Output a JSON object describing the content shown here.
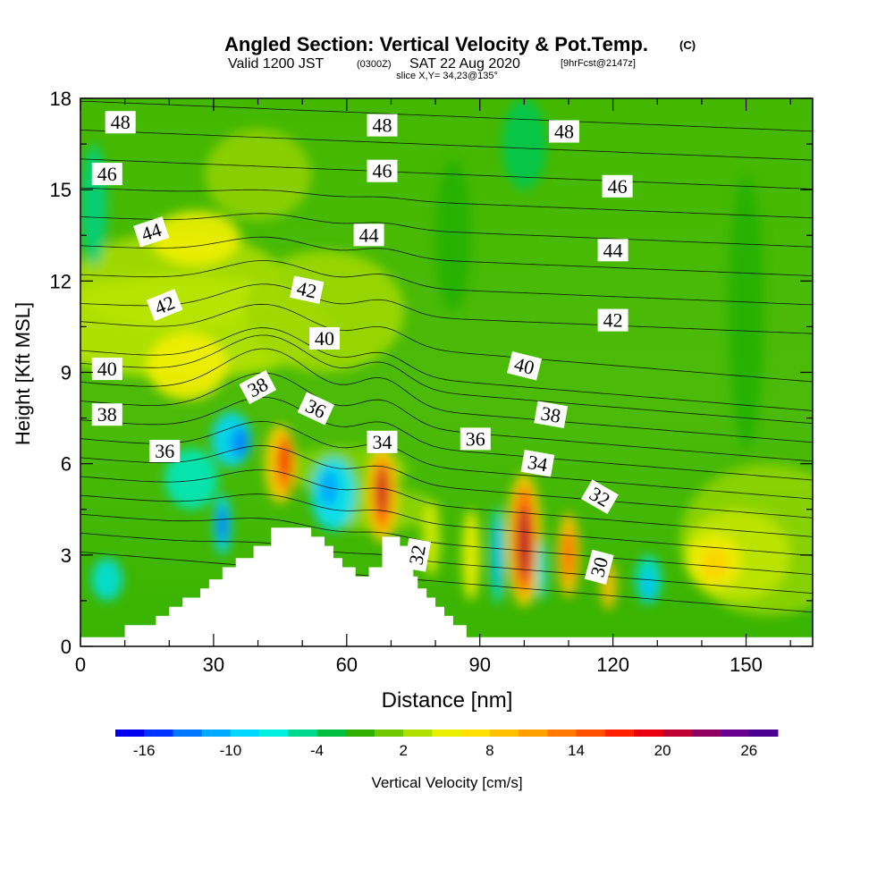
{
  "chart_data": {
    "type": "heatmap",
    "title": "Angled Section: Vertical Velocity & Pot.Temp.",
    "title_tag": "(C)",
    "subtitle_valid": "Valid 1200 JST",
    "subtitle_z": "(0300Z)",
    "subtitle_date": "SAT 22 Aug 2020",
    "subtitle_fcst": "[9hrFcst@2147z]",
    "slice_label": "slice X,Y= 34,23@135°",
    "xlabel": "Distance [nm]",
    "ylabel": "Height [Kft MSL]",
    "xlim": [
      0,
      165
    ],
    "ylim": [
      0,
      18
    ],
    "xticks": [
      0,
      30,
      60,
      90,
      120,
      150
    ],
    "yticks": [
      0,
      3,
      6,
      9,
      12,
      15,
      18
    ],
    "colorbar": {
      "label": "Vertical Velocity [cm/s]",
      "min": -18,
      "max": 28,
      "step": 2,
      "tick_labels": [
        "-16",
        "-10",
        "-4",
        "2",
        "8",
        "14",
        "20",
        "26"
      ],
      "tick_values": [
        -16,
        -10,
        -4,
        2,
        8,
        14,
        20,
        26
      ],
      "colors": [
        "#0000ee",
        "#0033ff",
        "#0077ff",
        "#00aaff",
        "#00d8ff",
        "#00f0e0",
        "#00d890",
        "#00c040",
        "#30b000",
        "#70c800",
        "#b0e000",
        "#e8f000",
        "#ffe000",
        "#ffc000",
        "#ffa000",
        "#ff7800",
        "#ff5000",
        "#ff2000",
        "#e80010",
        "#c00030",
        "#900060",
        "#6a0090",
        "#4a0090"
      ]
    },
    "terrain": [
      [
        0,
        0.3
      ],
      [
        10,
        0.3
      ],
      [
        10,
        0.7
      ],
      [
        17,
        0.7
      ],
      [
        17,
        1.0
      ],
      [
        20,
        1.0
      ],
      [
        20,
        1.3
      ],
      [
        23,
        1.3
      ],
      [
        23,
        1.6
      ],
      [
        27,
        1.6
      ],
      [
        27,
        1.9
      ],
      [
        29,
        1.9
      ],
      [
        29,
        2.2
      ],
      [
        32,
        2.2
      ],
      [
        32,
        2.6
      ],
      [
        35,
        2.6
      ],
      [
        35,
        2.9
      ],
      [
        39,
        2.9
      ],
      [
        39,
        3.3
      ],
      [
        43,
        3.3
      ],
      [
        43,
        3.9
      ],
      [
        52,
        3.9
      ],
      [
        52,
        3.6
      ],
      [
        55,
        3.6
      ],
      [
        55,
        3.3
      ],
      [
        57,
        3.3
      ],
      [
        57,
        2.9
      ],
      [
        59,
        2.9
      ],
      [
        59,
        2.6
      ],
      [
        62,
        2.6
      ],
      [
        62,
        2.3
      ],
      [
        65,
        2.3
      ],
      [
        65,
        2.6
      ],
      [
        68,
        2.6
      ],
      [
        68,
        3.6
      ],
      [
        72,
        3.6
      ],
      [
        72,
        3.3
      ],
      [
        74,
        3.3
      ],
      [
        74,
        2.9
      ],
      [
        75,
        2.9
      ],
      [
        75,
        2.3
      ],
      [
        76,
        2.3
      ],
      [
        76,
        1.9
      ],
      [
        78,
        1.9
      ],
      [
        78,
        1.6
      ],
      [
        80,
        1.6
      ],
      [
        80,
        1.3
      ],
      [
        82,
        1.3
      ],
      [
        82,
        1.0
      ],
      [
        84,
        1.0
      ],
      [
        84,
        0.7
      ],
      [
        87,
        0.7
      ],
      [
        87,
        0.3
      ],
      [
        165,
        0.3
      ]
    ],
    "theta_labels": [
      {
        "text": "48",
        "x": 9,
        "y": 17.2,
        "rot": 0
      },
      {
        "text": "48",
        "x": 68,
        "y": 17.1,
        "rot": 0
      },
      {
        "text": "48",
        "x": 109,
        "y": 16.9,
        "rot": 0
      },
      {
        "text": "46",
        "x": 6,
        "y": 15.5,
        "rot": 0
      },
      {
        "text": "46",
        "x": 68,
        "y": 15.6,
        "rot": 0
      },
      {
        "text": "46",
        "x": 121,
        "y": 15.1,
        "rot": 0
      },
      {
        "text": "44",
        "x": 16,
        "y": 13.6,
        "rot": -18
      },
      {
        "text": "44",
        "x": 65,
        "y": 13.5,
        "rot": 0
      },
      {
        "text": "44",
        "x": 120,
        "y": 13.0,
        "rot": 0
      },
      {
        "text": "42",
        "x": 19,
        "y": 11.2,
        "rot": -22
      },
      {
        "text": "42",
        "x": 51,
        "y": 11.7,
        "rot": 12
      },
      {
        "text": "42",
        "x": 120,
        "y": 10.7,
        "rot": 0
      },
      {
        "text": "40",
        "x": 6,
        "y": 9.1,
        "rot": 0
      },
      {
        "text": "40",
        "x": 55,
        "y": 10.1,
        "rot": 0
      },
      {
        "text": "40",
        "x": 100,
        "y": 9.2,
        "rot": 14
      },
      {
        "text": "38",
        "x": 6,
        "y": 7.6,
        "rot": 0
      },
      {
        "text": "38",
        "x": 40,
        "y": 8.5,
        "rot": -28
      },
      {
        "text": "38",
        "x": 106,
        "y": 7.6,
        "rot": 10
      },
      {
        "text": "36",
        "x": 19,
        "y": 6.4,
        "rot": 0
      },
      {
        "text": "36",
        "x": 53,
        "y": 7.8,
        "rot": 25
      },
      {
        "text": "36",
        "x": 89,
        "y": 6.8,
        "rot": 0
      },
      {
        "text": "34",
        "x": 68,
        "y": 6.7,
        "rot": 0
      },
      {
        "text": "34",
        "x": 103,
        "y": 6.0,
        "rot": 10
      },
      {
        "text": "32",
        "x": 117,
        "y": 4.9,
        "rot": 30
      },
      {
        "text": "32",
        "x": 76,
        "y": 3.0,
        "rot": -80
      },
      {
        "text": "30",
        "x": 117,
        "y": 2.6,
        "rot": -75
      }
    ]
  }
}
